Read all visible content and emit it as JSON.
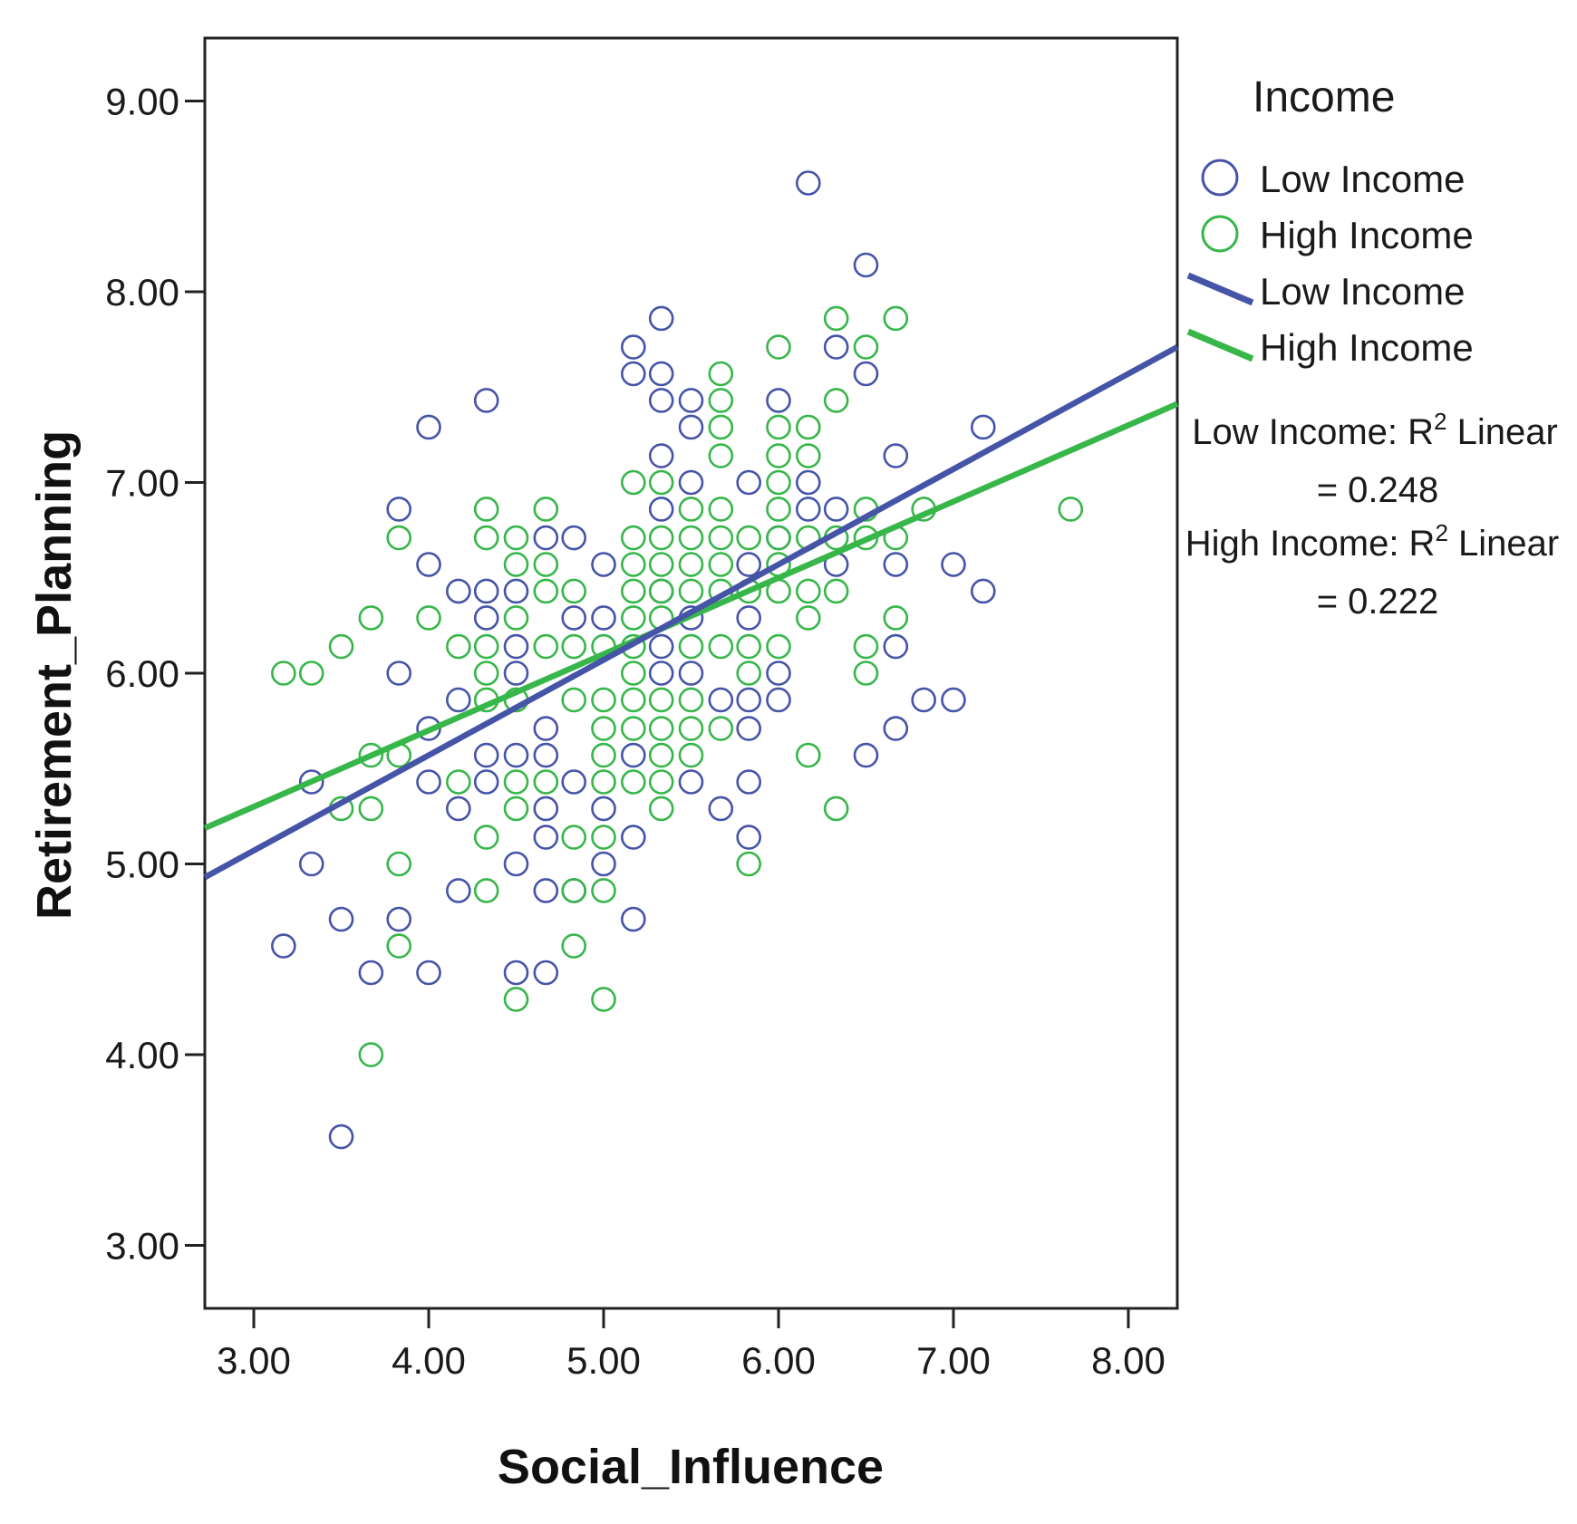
{
  "chart_data": {
    "type": "scatter",
    "xlabel": "Social_Influence",
    "ylabel": "Retirement_Planning",
    "xlim": [
      2.72,
      8.28
    ],
    "ylim": [
      2.67,
      9.33
    ],
    "xticks": [
      "3.00",
      "4.00",
      "5.00",
      "6.00",
      "7.00",
      "8.00"
    ],
    "yticks": [
      "3.00",
      "4.00",
      "5.00",
      "6.00",
      "7.00",
      "8.00",
      "9.00"
    ],
    "grid": false,
    "legend": {
      "title": "Income",
      "position": "right",
      "marker_entries": [
        "Low Income",
        "High Income"
      ],
      "line_entries": [
        "Low Income",
        "High Income"
      ]
    },
    "annotations": {
      "low": {
        "line1_prefix": "Low Income: R",
        "sup": "2",
        "line1_suffix": " Linear",
        "line2": "= 0.248"
      },
      "high": {
        "line1_prefix": "High Income: R",
        "sup": "2",
        "line1_suffix": " Linear",
        "line2": "= 0.222"
      }
    },
    "colors": {
      "low": "#4654a8",
      "high": "#37b64a"
    },
    "series": [
      {
        "name": "Low Income",
        "fit": {
          "slope": 0.5,
          "intercept": 3.57
        },
        "points": [
          [
            3.17,
            4.57
          ],
          [
            3.33,
            5.43
          ],
          [
            3.33,
            5.0
          ],
          [
            3.5,
            4.71
          ],
          [
            3.5,
            3.57
          ],
          [
            3.67,
            4.43
          ],
          [
            3.83,
            6.86
          ],
          [
            3.83,
            6.0
          ],
          [
            3.83,
            4.71
          ],
          [
            4.0,
            7.29
          ],
          [
            4.0,
            6.57
          ],
          [
            4.0,
            5.71
          ],
          [
            4.0,
            5.43
          ],
          [
            4.0,
            4.43
          ],
          [
            4.17,
            6.43
          ],
          [
            4.17,
            5.86
          ],
          [
            4.17,
            5.29
          ],
          [
            4.17,
            4.86
          ],
          [
            4.33,
            7.43
          ],
          [
            4.33,
            6.43
          ],
          [
            4.33,
            6.29
          ],
          [
            4.33,
            5.57
          ],
          [
            4.33,
            5.43
          ],
          [
            4.5,
            6.43
          ],
          [
            4.5,
            6.14
          ],
          [
            4.5,
            6.0
          ],
          [
            4.5,
            5.57
          ],
          [
            4.5,
            5.0
          ],
          [
            4.5,
            4.43
          ],
          [
            4.67,
            6.71
          ],
          [
            4.67,
            5.71
          ],
          [
            4.67,
            5.57
          ],
          [
            4.67,
            5.29
          ],
          [
            4.67,
            5.14
          ],
          [
            4.67,
            4.86
          ],
          [
            4.67,
            4.43
          ],
          [
            4.83,
            6.71
          ],
          [
            4.83,
            6.29
          ],
          [
            4.83,
            5.43
          ],
          [
            4.83,
            4.86
          ],
          [
            5.0,
            6.57
          ],
          [
            5.0,
            6.29
          ],
          [
            5.0,
            5.29
          ],
          [
            5.0,
            5.0
          ],
          [
            5.17,
            7.71
          ],
          [
            5.17,
            7.57
          ],
          [
            5.17,
            5.57
          ],
          [
            5.17,
            5.14
          ],
          [
            5.17,
            4.71
          ],
          [
            5.33,
            7.86
          ],
          [
            5.33,
            7.57
          ],
          [
            5.33,
            7.43
          ],
          [
            5.33,
            7.14
          ],
          [
            5.33,
            6.86
          ],
          [
            5.33,
            6.43
          ],
          [
            5.33,
            6.14
          ],
          [
            5.33,
            6.0
          ],
          [
            5.5,
            7.43
          ],
          [
            5.5,
            7.29
          ],
          [
            5.5,
            7.0
          ],
          [
            5.5,
            6.29
          ],
          [
            5.5,
            6.0
          ],
          [
            5.5,
            5.43
          ],
          [
            5.67,
            5.86
          ],
          [
            5.67,
            5.29
          ],
          [
            5.83,
            7.0
          ],
          [
            5.83,
            6.57
          ],
          [
            5.83,
            6.29
          ],
          [
            5.83,
            5.86
          ],
          [
            5.83,
            5.71
          ],
          [
            5.83,
            5.43
          ],
          [
            5.83,
            5.14
          ],
          [
            6.0,
            7.43
          ],
          [
            6.0,
            6.71
          ],
          [
            6.0,
            6.0
          ],
          [
            6.0,
            5.86
          ],
          [
            6.17,
            8.57
          ],
          [
            6.17,
            7.0
          ],
          [
            6.17,
            6.86
          ],
          [
            6.33,
            7.71
          ],
          [
            6.33,
            6.86
          ],
          [
            6.33,
            6.57
          ],
          [
            6.5,
            8.14
          ],
          [
            6.5,
            7.57
          ],
          [
            6.5,
            5.57
          ],
          [
            6.67,
            7.14
          ],
          [
            6.67,
            6.57
          ],
          [
            6.67,
            6.14
          ],
          [
            6.67,
            5.71
          ],
          [
            6.83,
            5.86
          ],
          [
            7.0,
            6.57
          ],
          [
            7.0,
            5.86
          ],
          [
            7.17,
            7.29
          ],
          [
            7.17,
            6.43
          ]
        ]
      },
      {
        "name": "High Income",
        "fit": {
          "slope": 0.4,
          "intercept": 4.1
        },
        "points": [
          [
            3.17,
            6.0
          ],
          [
            3.33,
            6.0
          ],
          [
            3.5,
            6.14
          ],
          [
            3.5,
            5.29
          ],
          [
            3.67,
            6.29
          ],
          [
            3.67,
            5.57
          ],
          [
            3.67,
            5.29
          ],
          [
            3.67,
            4.0
          ],
          [
            3.83,
            6.71
          ],
          [
            3.83,
            5.57
          ],
          [
            3.83,
            5.0
          ],
          [
            3.83,
            4.57
          ],
          [
            4.0,
            6.29
          ],
          [
            4.17,
            6.14
          ],
          [
            4.17,
            5.43
          ],
          [
            4.33,
            6.86
          ],
          [
            4.33,
            6.71
          ],
          [
            4.33,
            6.14
          ],
          [
            4.33,
            6.0
          ],
          [
            4.33,
            5.86
          ],
          [
            4.33,
            5.14
          ],
          [
            4.33,
            4.86
          ],
          [
            4.5,
            6.71
          ],
          [
            4.5,
            6.57
          ],
          [
            4.5,
            6.29
          ],
          [
            4.5,
            5.86
          ],
          [
            4.5,
            5.43
          ],
          [
            4.5,
            5.29
          ],
          [
            4.5,
            4.29
          ],
          [
            4.67,
            6.86
          ],
          [
            4.67,
            6.57
          ],
          [
            4.67,
            6.43
          ],
          [
            4.67,
            6.14
          ],
          [
            4.67,
            5.43
          ],
          [
            4.83,
            6.43
          ],
          [
            4.83,
            6.14
          ],
          [
            4.83,
            5.86
          ],
          [
            4.83,
            5.14
          ],
          [
            4.83,
            4.86
          ],
          [
            4.83,
            4.57
          ],
          [
            5.0,
            6.14
          ],
          [
            5.0,
            5.86
          ],
          [
            5.0,
            5.71
          ],
          [
            5.0,
            5.57
          ],
          [
            5.0,
            5.43
          ],
          [
            5.0,
            5.14
          ],
          [
            5.0,
            4.86
          ],
          [
            5.0,
            4.29
          ],
          [
            5.17,
            7.0
          ],
          [
            5.17,
            6.71
          ],
          [
            5.17,
            6.57
          ],
          [
            5.17,
            6.43
          ],
          [
            5.17,
            6.29
          ],
          [
            5.17,
            6.14
          ],
          [
            5.17,
            6.0
          ],
          [
            5.17,
            5.86
          ],
          [
            5.17,
            5.71
          ],
          [
            5.17,
            5.43
          ],
          [
            5.33,
            7.0
          ],
          [
            5.33,
            6.71
          ],
          [
            5.33,
            6.57
          ],
          [
            5.33,
            6.43
          ],
          [
            5.33,
            6.29
          ],
          [
            5.33,
            5.86
          ],
          [
            5.33,
            5.71
          ],
          [
            5.33,
            5.57
          ],
          [
            5.33,
            5.43
          ],
          [
            5.33,
            5.29
          ],
          [
            5.5,
            6.86
          ],
          [
            5.5,
            6.71
          ],
          [
            5.5,
            6.57
          ],
          [
            5.5,
            6.43
          ],
          [
            5.5,
            6.14
          ],
          [
            5.5,
            5.86
          ],
          [
            5.5,
            5.71
          ],
          [
            5.5,
            5.57
          ],
          [
            5.67,
            7.57
          ],
          [
            5.67,
            7.43
          ],
          [
            5.67,
            7.29
          ],
          [
            5.67,
            7.14
          ],
          [
            5.67,
            6.86
          ],
          [
            5.67,
            6.71
          ],
          [
            5.67,
            6.57
          ],
          [
            5.67,
            6.43
          ],
          [
            5.67,
            6.14
          ],
          [
            5.67,
            5.71
          ],
          [
            5.83,
            6.71
          ],
          [
            5.83,
            6.43
          ],
          [
            5.83,
            6.14
          ],
          [
            5.83,
            6.0
          ],
          [
            5.83,
            5.0
          ],
          [
            6.0,
            7.71
          ],
          [
            6.0,
            7.29
          ],
          [
            6.0,
            7.14
          ],
          [
            6.0,
            7.0
          ],
          [
            6.0,
            6.86
          ],
          [
            6.0,
            6.71
          ],
          [
            6.0,
            6.57
          ],
          [
            6.0,
            6.43
          ],
          [
            6.0,
            6.14
          ],
          [
            6.17,
            7.29
          ],
          [
            6.17,
            7.14
          ],
          [
            6.17,
            6.71
          ],
          [
            6.17,
            6.43
          ],
          [
            6.17,
            6.29
          ],
          [
            6.17,
            5.57
          ],
          [
            6.33,
            7.86
          ],
          [
            6.33,
            7.43
          ],
          [
            6.33,
            6.71
          ],
          [
            6.33,
            6.43
          ],
          [
            6.33,
            5.29
          ],
          [
            6.5,
            7.71
          ],
          [
            6.5,
            6.86
          ],
          [
            6.5,
            6.71
          ],
          [
            6.5,
            6.14
          ],
          [
            6.5,
            6.0
          ],
          [
            6.67,
            7.86
          ],
          [
            6.67,
            6.71
          ],
          [
            6.67,
            6.29
          ],
          [
            6.83,
            6.86
          ],
          [
            7.67,
            6.86
          ]
        ]
      }
    ]
  }
}
